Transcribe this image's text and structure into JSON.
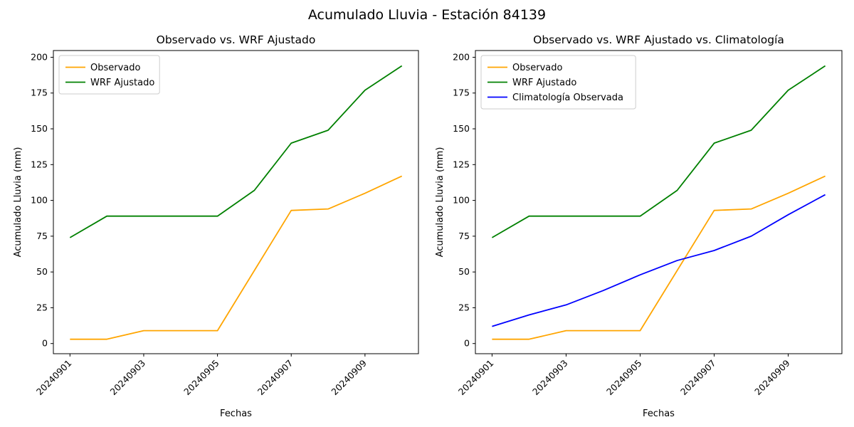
{
  "figure": {
    "suptitle": "Acumulado Lluvia - Estación 84139",
    "background": "#ffffff",
    "text_color": "#000000"
  },
  "chart_data": [
    {
      "type": "line",
      "title": "Observado vs. WRF Ajustado",
      "xlabel": "Fechas",
      "ylabel": "Acumulado Lluvia (mm)",
      "x": [
        "20240901",
        "20240902",
        "20240903",
        "20240904",
        "20240905",
        "20240906",
        "20240907",
        "20240908",
        "20240909",
        "20240910"
      ],
      "xtick_indices": [
        0,
        2,
        4,
        6,
        8
      ],
      "xtick_labels": [
        "20240901",
        "20240903",
        "20240905",
        "20240907",
        "20240909"
      ],
      "yticks": [
        0,
        25,
        50,
        75,
        100,
        125,
        150,
        175,
        200
      ],
      "xlim": [
        -0.45,
        9.45
      ],
      "ylim": [
        -7.1,
        204.7
      ],
      "grid": false,
      "legend_position": "upper-left",
      "series": [
        {
          "name": "Observado",
          "color": "#ffa500",
          "values": [
            3,
            3,
            9,
            9,
            9,
            51,
            93,
            94,
            105,
            117
          ]
        },
        {
          "name": "WRF Ajustado",
          "color": "#008000",
          "values": [
            74,
            89,
            89,
            89,
            89,
            107,
            140,
            149,
            177,
            194
          ]
        }
      ]
    },
    {
      "type": "line",
      "title": "Observado vs. WRF Ajustado vs. Climatología",
      "xlabel": "Fechas",
      "ylabel": "Acumulado Lluvia (mm)",
      "x": [
        "20240901",
        "20240902",
        "20240903",
        "20240904",
        "20240905",
        "20240906",
        "20240907",
        "20240908",
        "20240909",
        "20240910"
      ],
      "xtick_indices": [
        0,
        2,
        4,
        6,
        8
      ],
      "xtick_labels": [
        "20240901",
        "20240903",
        "20240905",
        "20240907",
        "20240909"
      ],
      "yticks": [
        0,
        25,
        50,
        75,
        100,
        125,
        150,
        175,
        200
      ],
      "xlim": [
        -0.45,
        9.45
      ],
      "ylim": [
        -7.1,
        204.7
      ],
      "grid": false,
      "legend_position": "upper-left",
      "series": [
        {
          "name": "Observado",
          "color": "#ffa500",
          "values": [
            3,
            3,
            9,
            9,
            9,
            51,
            93,
            94,
            105,
            117
          ]
        },
        {
          "name": "WRF Ajustado",
          "color": "#008000",
          "values": [
            74,
            89,
            89,
            89,
            89,
            107,
            140,
            149,
            177,
            194
          ]
        },
        {
          "name": "Climatología Observada",
          "color": "#0000ff",
          "values": [
            12,
            20,
            27,
            37,
            48,
            58,
            65,
            75,
            90,
            104
          ]
        }
      ]
    }
  ]
}
